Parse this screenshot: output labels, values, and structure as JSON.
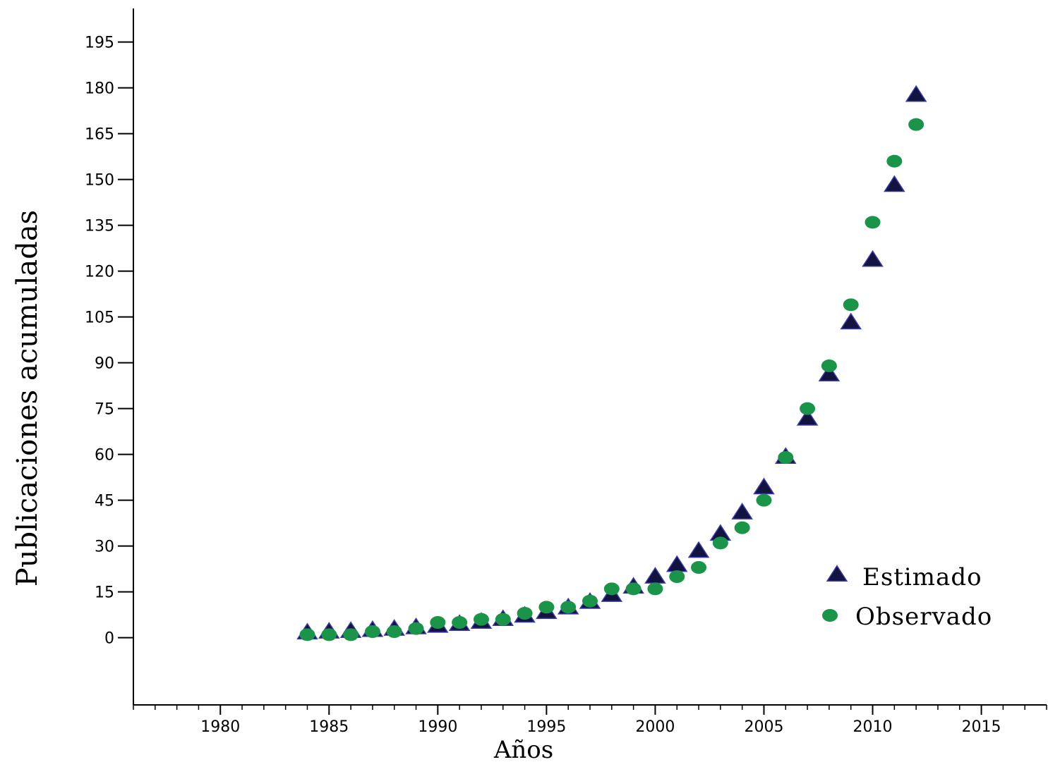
{
  "chart_data": {
    "type": "scatter",
    "xlabel": "Años",
    "ylabel": "Publicaciones acumuladas",
    "xlim": [
      1976,
      2018
    ],
    "ylim": [
      -22,
      206
    ],
    "xticks": [
      1980,
      1985,
      1990,
      1995,
      2000,
      2005,
      2010,
      2015
    ],
    "yticks": [
      0,
      15,
      30,
      45,
      60,
      75,
      90,
      105,
      120,
      135,
      150,
      165,
      180,
      195
    ],
    "grid": false,
    "legend_position": "right",
    "series": [
      {
        "name": "Estimado",
        "marker": "triangle",
        "color": "#13133f",
        "edge_color": "#3a3aa8",
        "x": [
          1984,
          1985,
          1986,
          1987,
          1988,
          1989,
          1990,
          1991,
          1992,
          1993,
          1994,
          1995,
          1996,
          1997,
          1998,
          1999,
          2000,
          2001,
          2002,
          2003,
          2004,
          2005,
          2006,
          2007,
          2008,
          2009,
          2010,
          2011,
          2012
        ],
        "y": [
          1.5,
          1.8,
          2,
          2.3,
          2.7,
          3.2,
          3.7,
          4.3,
          5,
          5.9,
          7,
          8.2,
          9.7,
          11.5,
          13.8,
          16.5,
          19.8,
          23.6,
          28.2,
          33.8,
          40.8,
          49,
          59,
          71.5,
          86,
          103,
          123.5,
          148,
          177.5
        ]
      },
      {
        "name": "Observado",
        "marker": "circle",
        "color": "#1a9448",
        "x": [
          1984,
          1985,
          1986,
          1987,
          1988,
          1989,
          1990,
          1991,
          1992,
          1993,
          1994,
          1995,
          1996,
          1997,
          1998,
          1999,
          2000,
          2001,
          2002,
          2003,
          2004,
          2005,
          2006,
          2007,
          2008,
          2009,
          2010,
          2011,
          2012
        ],
        "y": [
          1,
          1,
          1,
          2,
          2,
          3,
          5,
          5,
          6,
          6,
          8,
          10,
          10,
          12,
          16,
          16,
          16,
          20,
          23,
          31,
          36,
          45,
          59,
          75,
          89,
          109,
          136,
          156,
          168
        ]
      }
    ]
  }
}
